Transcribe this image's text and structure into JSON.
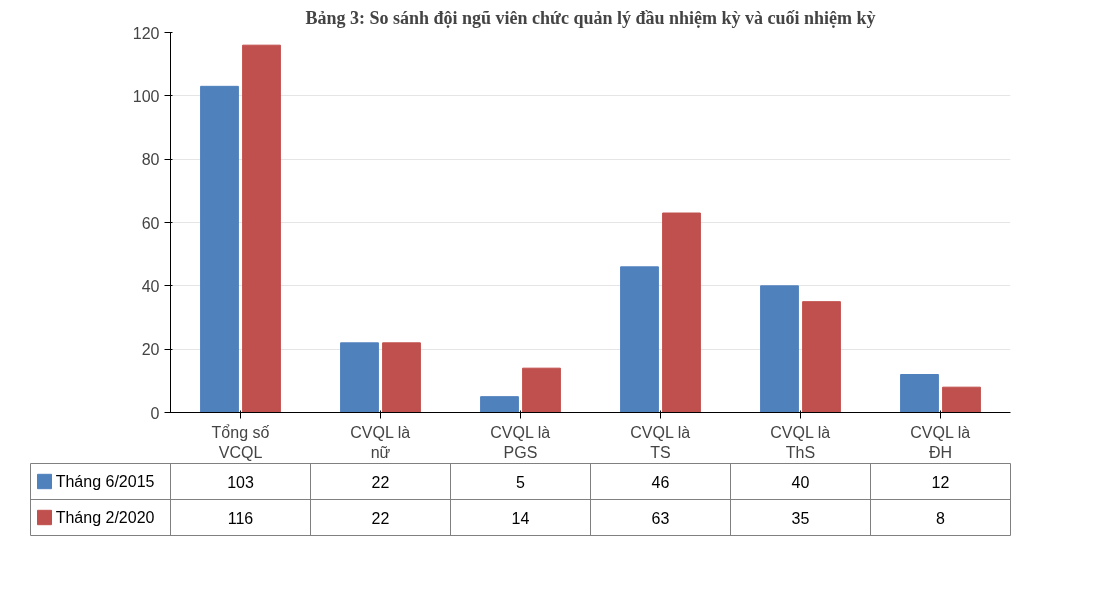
{
  "chart_data": {
    "type": "bar",
    "title": "Bảng 3: So sánh đội ngũ viên chức quản lý đầu nhiệm kỳ và cuối nhiệm kỳ",
    "categories": [
      "Tổng số VCQL",
      "CVQL là nữ",
      "CVQL là PGS",
      "CVQL là TS",
      "CVQL là ThS",
      "CVQL là ĐH"
    ],
    "series": [
      {
        "name": "Tháng 6/2015",
        "color": "#4f81bd",
        "values": [
          103,
          22,
          5,
          46,
          40,
          12
        ]
      },
      {
        "name": "Tháng 2/2020",
        "color": "#c0504d",
        "values": [
          116,
          22,
          14,
          63,
          35,
          8
        ]
      }
    ],
    "ylim": [
      0,
      120
    ],
    "yticks": [
      0,
      20,
      40,
      60,
      80,
      100,
      120
    ],
    "grid": "y",
    "legend": "bottom",
    "data_labels": true
  }
}
